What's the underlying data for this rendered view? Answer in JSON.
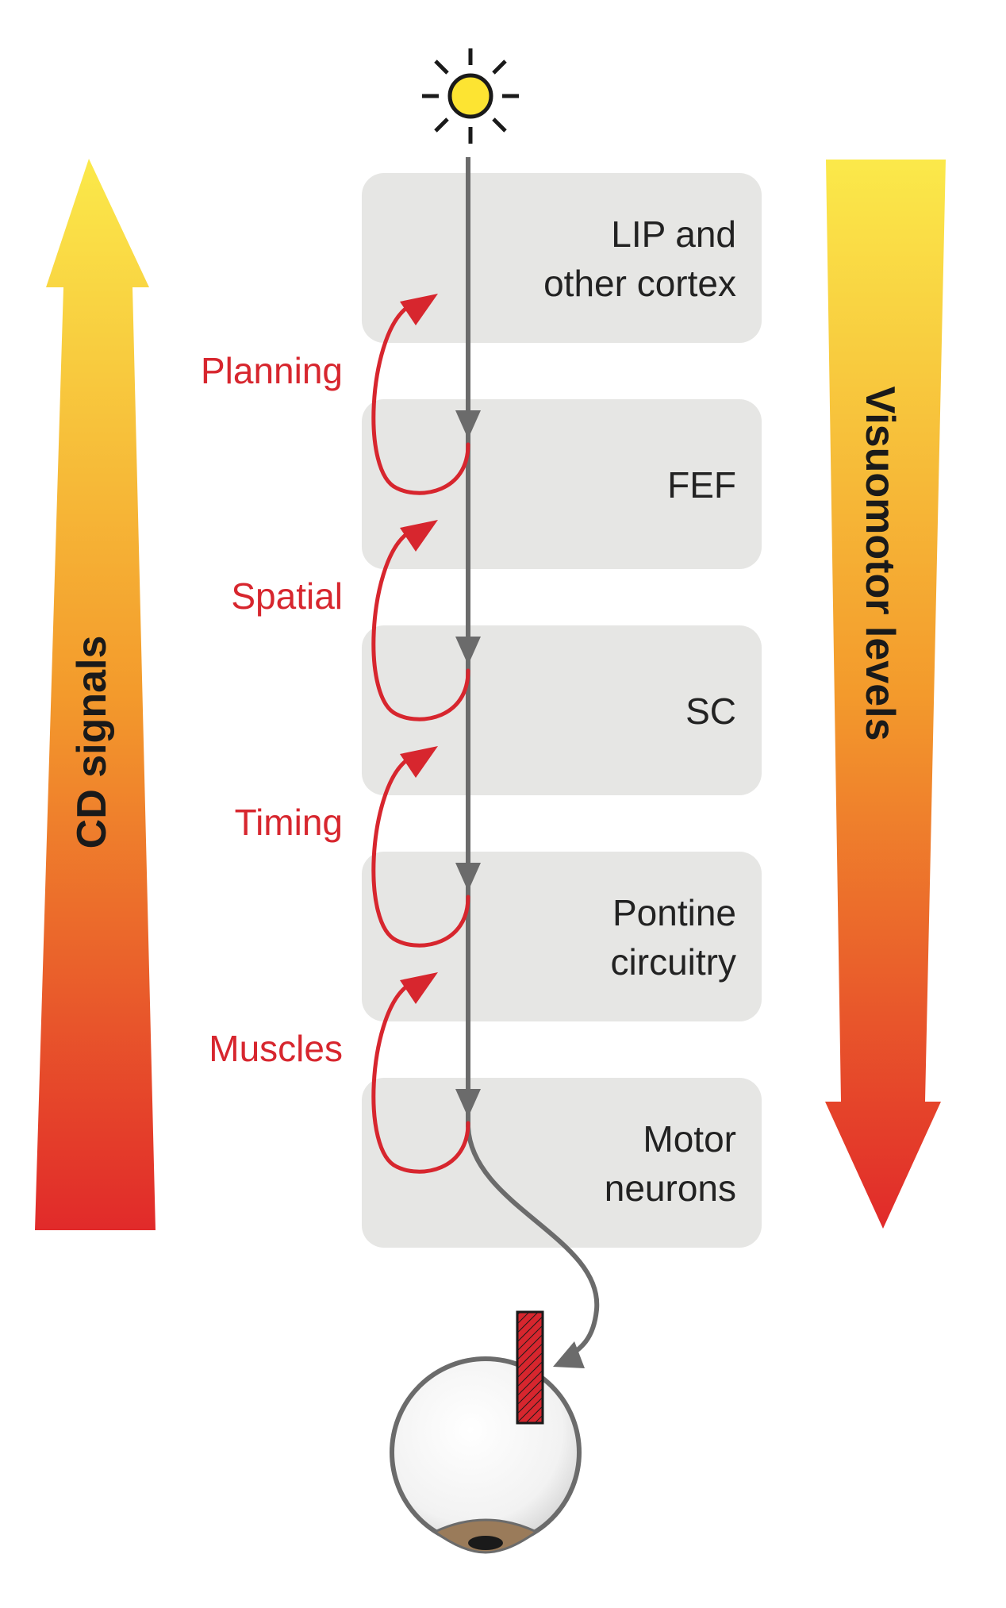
{
  "diagram": {
    "left_arrow_label": "CD signals",
    "right_arrow_label": "Visuomotor levels",
    "boxes": [
      {
        "lines": [
          "LIP and",
          "other cortex"
        ]
      },
      {
        "lines": [
          "FEF"
        ]
      },
      {
        "lines": [
          "SC"
        ]
      },
      {
        "lines": [
          "Pontine",
          "circuitry"
        ]
      },
      {
        "lines": [
          "Motor",
          "neurons"
        ]
      }
    ],
    "cd_loops": [
      "Planning",
      "Spatial",
      "Timing",
      "Muscles"
    ]
  },
  "colors": {
    "box_fill": "#e6e6e4",
    "pathway": "#6b6b6b",
    "cd_red": "#d7262e",
    "gradient_top": "#fbe94a",
    "gradient_mid": "#f39a2c",
    "gradient_bottom": "#e12a2a",
    "sun_fill": "#fde432"
  },
  "icons": [
    "sun-icon",
    "eye-icon",
    "eye-muscle-icon"
  ]
}
